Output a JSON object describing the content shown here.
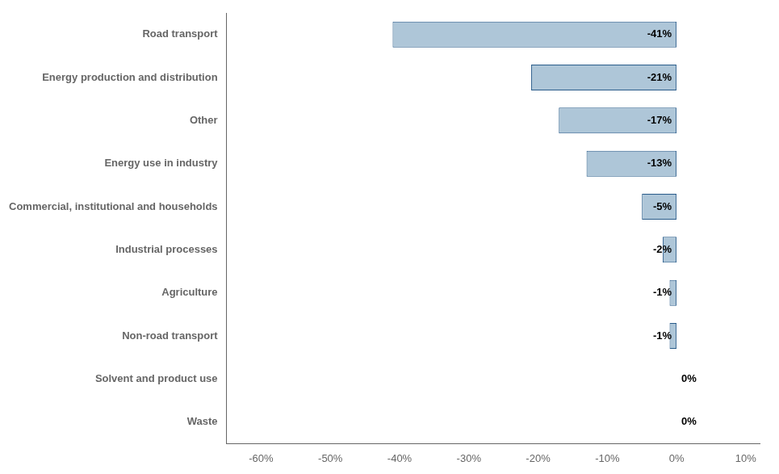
{
  "chart_data": {
    "type": "bar",
    "orientation": "horizontal",
    "categories": [
      "Road transport",
      "Energy production and distribution",
      "Other",
      "Energy use in industry",
      "Commercial, institutional and households",
      "Industrial processes",
      "Agriculture",
      "Non-road transport",
      "Solvent and product use",
      "Waste"
    ],
    "values": [
      -41,
      -21,
      -17,
      -13,
      -5,
      -2,
      -1,
      -1,
      0,
      0
    ],
    "value_labels": [
      "-41%",
      "-21%",
      "-17%",
      "-13%",
      "-5%",
      "-2%",
      "-1%",
      "-1%",
      "0%",
      "0%"
    ],
    "data_labels": true,
    "color": "#aec6d8",
    "xlim": [
      -65,
      12
    ],
    "xticks": [
      {
        "value": -60,
        "label": "-60%"
      },
      {
        "value": -50,
        "label": "-50%"
      },
      {
        "value": -40,
        "label": "-40%"
      },
      {
        "value": -30,
        "label": "-30%"
      },
      {
        "value": -20,
        "label": "-20%"
      },
      {
        "value": -10,
        "label": "-10%"
      },
      {
        "value": 0,
        "label": "0%"
      },
      {
        "value": 10,
        "label": "10%"
      }
    ],
    "grid": false
  }
}
